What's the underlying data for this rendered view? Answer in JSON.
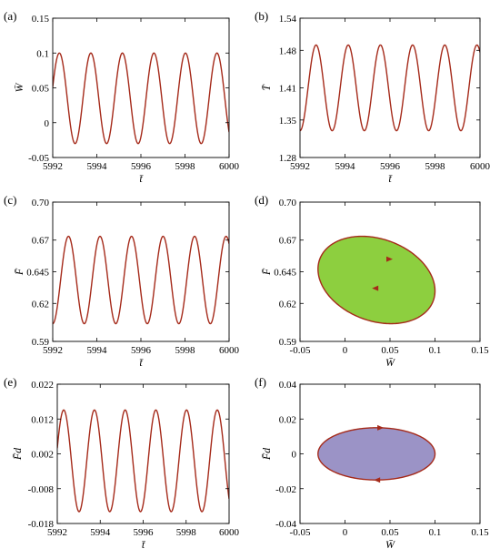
{
  "colors": {
    "curve": "#a52a1a",
    "axis": "#000000",
    "ellipse_d_fill": "#8dcf3f",
    "ellipse_f_fill": "#9b93c6"
  },
  "chart_data": [
    {
      "id": "a",
      "type": "line",
      "label": "(a)",
      "xlabel": "t̄",
      "ylabel": "W̄",
      "xlim": [
        5992,
        6000
      ],
      "ylim": [
        -0.05,
        0.15
      ],
      "xticks": [
        5992,
        5994,
        5996,
        5998,
        6000
      ],
      "xtick_labels": [
        "5992",
        "5994",
        "5996",
        "5998",
        "6000"
      ],
      "yticks": [
        -0.05,
        0,
        0.05,
        0.1,
        0.15
      ],
      "ytick_labels": [
        "-0.05",
        "0",
        "0.05",
        "0.1",
        "0.15"
      ],
      "series": [
        {
          "mean": 0.035,
          "amplitude": 0.065,
          "period": 1.43,
          "phase": 0.79
        }
      ]
    },
    {
      "id": "b",
      "type": "line",
      "label": "(b)",
      "xlabel": "t̄",
      "ylabel": "T̄",
      "xlim": [
        5992,
        6000
      ],
      "ylim": [
        1.28,
        1.54
      ],
      "xticks": [
        5992,
        5994,
        5996,
        5998,
        6000
      ],
      "xtick_labels": [
        "5992",
        "5994",
        "5996",
        "5998",
        "6000"
      ],
      "yticks": [
        1.28,
        1.35,
        1.41,
        1.48,
        1.54
      ],
      "ytick_labels": [
        "1.28",
        "1.35",
        "1.41",
        "1.48",
        "1.54"
      ],
      "series": [
        {
          "mean": 1.41,
          "amplitude": 0.08,
          "period": 1.43,
          "phase": 0.5
        }
      ]
    },
    {
      "id": "c",
      "type": "line",
      "label": "(c)",
      "xlabel": "t̄",
      "ylabel": "F̄",
      "xlim": [
        5992,
        6000
      ],
      "ylim": [
        0.59,
        0.7
      ],
      "xticks": [
        5992,
        5994,
        5996,
        5998,
        6000
      ],
      "xtick_labels": [
        "5992",
        "5994",
        "5996",
        "5998",
        "6000"
      ],
      "yticks": [
        0.59,
        0.62,
        0.645,
        0.67,
        0.7
      ],
      "ytick_labels": [
        "0.59",
        "0.62",
        "0.645",
        "0.67",
        "0.70"
      ],
      "series": [
        {
          "mean": 0.6385,
          "amplitude": 0.0345,
          "period": 1.43,
          "phase": 0.5
        }
      ]
    },
    {
      "id": "d",
      "type": "scatter",
      "label": "(d)",
      "xlabel": "W̄",
      "ylabel": "F̄",
      "xlim": [
        -0.05,
        0.15
      ],
      "ylim": [
        0.59,
        0.7
      ],
      "xticks": [
        -0.05,
        0,
        0.05,
        0.1,
        0.15
      ],
      "xtick_labels": [
        "-0.05",
        "0",
        "0.05",
        "0.1",
        "0.15"
      ],
      "yticks": [
        0.59,
        0.62,
        0.645,
        0.67,
        0.7
      ],
      "ytick_labels": [
        "0.59",
        "0.62",
        "0.645",
        "0.67",
        "0.70"
      ],
      "orbit": {
        "x": {
          "mean": 0.035,
          "amplitude": 0.065,
          "phase": 0.79
        },
        "y": {
          "mean": 0.6385,
          "amplitude": 0.0345,
          "phase": 0.5
        },
        "arrows": [
          {
            "x": 0.05,
            "y": 0.655
          },
          {
            "x": 0.033,
            "y": 0.632
          }
        ]
      }
    },
    {
      "id": "e",
      "type": "line",
      "label": "(e)",
      "xlabel": "t̄",
      "ylabel": "F̄d",
      "xlim": [
        5992,
        6000
      ],
      "ylim": [
        -0.018,
        0.022
      ],
      "xticks": [
        5992,
        5994,
        5996,
        5998,
        6000
      ],
      "xtick_labels": [
        "5992",
        "5994",
        "5996",
        "5998",
        "6000"
      ],
      "yticks": [
        -0.018,
        -0.008,
        0.002,
        0.012,
        0.022
      ],
      "ytick_labels": [
        "-0.018",
        "-0.008",
        "0.002",
        "0.012",
        "0.022"
      ],
      "series": [
        {
          "mean": 0,
          "amplitude": 0.0146,
          "period": 1.43,
          "phase": 1.79
        }
      ]
    },
    {
      "id": "f",
      "type": "scatter",
      "label": "(f)",
      "xlabel": "W̄",
      "ylabel": "F̄d",
      "xlim": [
        -0.05,
        0.15
      ],
      "ylim": [
        -0.04,
        0.04
      ],
      "xticks": [
        -0.05,
        0,
        0.05,
        0.1,
        0.15
      ],
      "xtick_labels": [
        "-0.05",
        "0",
        "0.05",
        "0.1",
        "0.15"
      ],
      "yticks": [
        -0.04,
        -0.02,
        0,
        0.02,
        0.04
      ],
      "ytick_labels": [
        "-0.04",
        "-0.02",
        "0",
        "0.02",
        "0.04"
      ],
      "orbit": {
        "x": {
          "mean": 0.035,
          "amplitude": 0.065,
          "phase": 0
        },
        "y": {
          "mean": 0,
          "amplitude": 0.015,
          "phase": 0.25
        },
        "arrows": [
          {
            "x": 0.04,
            "y": 0.015
          },
          {
            "x": 0.035,
            "y": -0.015
          }
        ]
      }
    }
  ]
}
